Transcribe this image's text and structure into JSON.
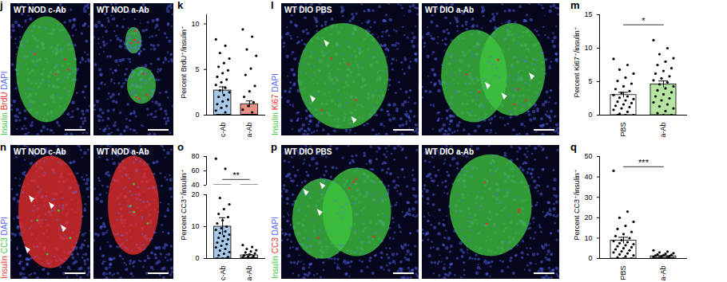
{
  "image_panels": [
    {
      "panel": "j",
      "channels": [
        {
          "text": "Insulin",
          "color": "#3ec43e"
        },
        {
          "text": "BrdU",
          "color": "#e8302c"
        },
        {
          "text": "DAPI",
          "color": "#5a6cff"
        }
      ],
      "images": [
        "WT NOD c-Ab",
        "WT NOD a-Ab"
      ]
    },
    {
      "panel": "l",
      "channels": [
        {
          "text": "Insulin",
          "color": "#3ec43e"
        },
        {
          "text": "Ki67",
          "color": "#e8302c"
        },
        {
          "text": "DAPI",
          "color": "#5a6cff"
        }
      ],
      "images": [
        "WT DIO PBS",
        "WT DIO a-Ab"
      ]
    },
    {
      "panel": "n",
      "channels": [
        {
          "text": "Insulin",
          "color": "#e8302c"
        },
        {
          "text": "CC3",
          "color": "#3ec43e"
        },
        {
          "text": "DAPI",
          "color": "#5a6cff"
        }
      ],
      "images": [
        "WT NOD c-Ab",
        "WT NOD a-Ab"
      ]
    },
    {
      "panel": "p",
      "channels": [
        {
          "text": "Insulin",
          "color": "#3ec43e"
        },
        {
          "text": "CC3",
          "color": "#e8302c"
        },
        {
          "text": "DAPI",
          "color": "#5a6cff"
        }
      ],
      "images": [
        "WT DIO PBS",
        "WT DIO a-Ab"
      ]
    }
  ],
  "chart_data": [
    {
      "panel": "k",
      "type": "bar",
      "y_label": "Percent BrdU⁺/insulin⁺",
      "categories": [
        "c-Ab",
        "a-Ab"
      ],
      "values": [
        2.7,
        1.2
      ],
      "errors": [
        0.4,
        0.35
      ],
      "points": [
        [
          8.3,
          7.6,
          6.8,
          6.2,
          5.7,
          5.3,
          4.9,
          4.6,
          4.2,
          3.9,
          3.6,
          3.3,
          3.0,
          2.7,
          2.5,
          2.2,
          2.0,
          1.7,
          1.5,
          1.2,
          1.0,
          0.8,
          0.5,
          0.3,
          0,
          0,
          0,
          0,
          0,
          0,
          0,
          0
        ],
        [
          9.4,
          8.6,
          7.2,
          6.5,
          5.1,
          4.4,
          3.2,
          2.6,
          2.0,
          1.4,
          1.0,
          0.6,
          0.3,
          0,
          0,
          0,
          0,
          0,
          0,
          0,
          0,
          0,
          0,
          0,
          0,
          0,
          0,
          0,
          0,
          0,
          0,
          0,
          0,
          0,
          0,
          0,
          0,
          0,
          0,
          0
        ]
      ],
      "colors": [
        "#a8c8e8",
        "#ea8f86"
      ],
      "ylim": [
        0,
        11
      ],
      "yticks": [
        0,
        5,
        10
      ]
    },
    {
      "panel": "m",
      "type": "bar",
      "y_label": "Percent Ki67⁺/insulin⁺",
      "categories": [
        "PBS",
        "a-Ab"
      ],
      "values": [
        3.0,
        4.6
      ],
      "errors": [
        0.4,
        0.5
      ],
      "points": [
        [
          8.4,
          7.5,
          6.8,
          6.2,
          5.6,
          5.1,
          4.7,
          4.3,
          3.9,
          3.6,
          3.3,
          3.0,
          2.8,
          2.6,
          2.4,
          2.2,
          2.0,
          1.8,
          1.6,
          1.4,
          1.2,
          1.0,
          0.8,
          0.5,
          0.2,
          0,
          0,
          0
        ],
        [
          11.2,
          10.0,
          9.1,
          8.5,
          8.0,
          7.5,
          7.0,
          6.6,
          6.2,
          5.8,
          5.5,
          5.2,
          4.9,
          4.6,
          4.3,
          4.0,
          3.7,
          3.4,
          3.1,
          2.8,
          2.5,
          2.2,
          1.9,
          1.6,
          1.3,
          1.0,
          0.6,
          0.3,
          0,
          0
        ]
      ],
      "colors": [
        "#ffffff",
        "#b6e3a2"
      ],
      "ylim": [
        0,
        15
      ],
      "yticks": [
        0,
        5,
        10,
        15
      ],
      "annotation": "*"
    },
    {
      "panel": "o",
      "type": "bar",
      "y_label": "Percent CC3⁺/insulin⁺",
      "categories": [
        "c-Ab",
        "a-Ab"
      ],
      "values": [
        10.0,
        1.0
      ],
      "errors": [
        2.8,
        0.25
      ],
      "points": [
        [
          77,
          63,
          19,
          17,
          15.5,
          14,
          13,
          12,
          11,
          10,
          9.5,
          9,
          8.5,
          8,
          7.5,
          7,
          6.5,
          6,
          5.5,
          5,
          4.5,
          4,
          3.5,
          3,
          2.5,
          2,
          1.5,
          1,
          0.5,
          0,
          0,
          0
        ],
        [
          4.2,
          3.6,
          3.0,
          2.6,
          2.2,
          1.9,
          1.6,
          1.3,
          1.0,
          0.8,
          0.6,
          0.4,
          0.2,
          0,
          0,
          0,
          0,
          0,
          0,
          0,
          0,
          0,
          0,
          0,
          0
        ]
      ],
      "colors": [
        "#a8c8e8",
        "#d9d9d9"
      ],
      "ylim": [
        0,
        20
      ],
      "yticks": [
        0,
        10,
        20
      ],
      "ylim_upper": [
        40,
        80
      ],
      "yticks_upper": [
        40,
        60,
        80
      ],
      "annotation": "**"
    },
    {
      "panel": "q",
      "type": "bar",
      "y_label": "Percent CC3⁺/insulin⁺",
      "categories": [
        "PBS",
        "a-Ab"
      ],
      "values": [
        8.8,
        1.1
      ],
      "errors": [
        1.6,
        0.2
      ],
      "points": [
        [
          43,
          23,
          20,
          18,
          16,
          14.5,
          13,
          12,
          11,
          10,
          9,
          8.5,
          8,
          7.5,
          7,
          6.5,
          6,
          5.5,
          5,
          4.5,
          4,
          3.5,
          3,
          2.5,
          2,
          1.5,
          1,
          0.5,
          0,
          0
        ],
        [
          4.0,
          3.4,
          3.0,
          2.6,
          2.3,
          2.0,
          1.8,
          1.6,
          1.4,
          1.2,
          1.0,
          0.8,
          0.6,
          0.4,
          0.2,
          0,
          0,
          0,
          0,
          0,
          0,
          0,
          0,
          0,
          0,
          0,
          0,
          0
        ]
      ],
      "colors": [
        "#ffffff",
        "#d9d9d9"
      ],
      "ylim": [
        0,
        50
      ],
      "yticks": [
        0,
        10,
        20,
        30,
        40,
        50
      ],
      "annotation": "***"
    }
  ]
}
